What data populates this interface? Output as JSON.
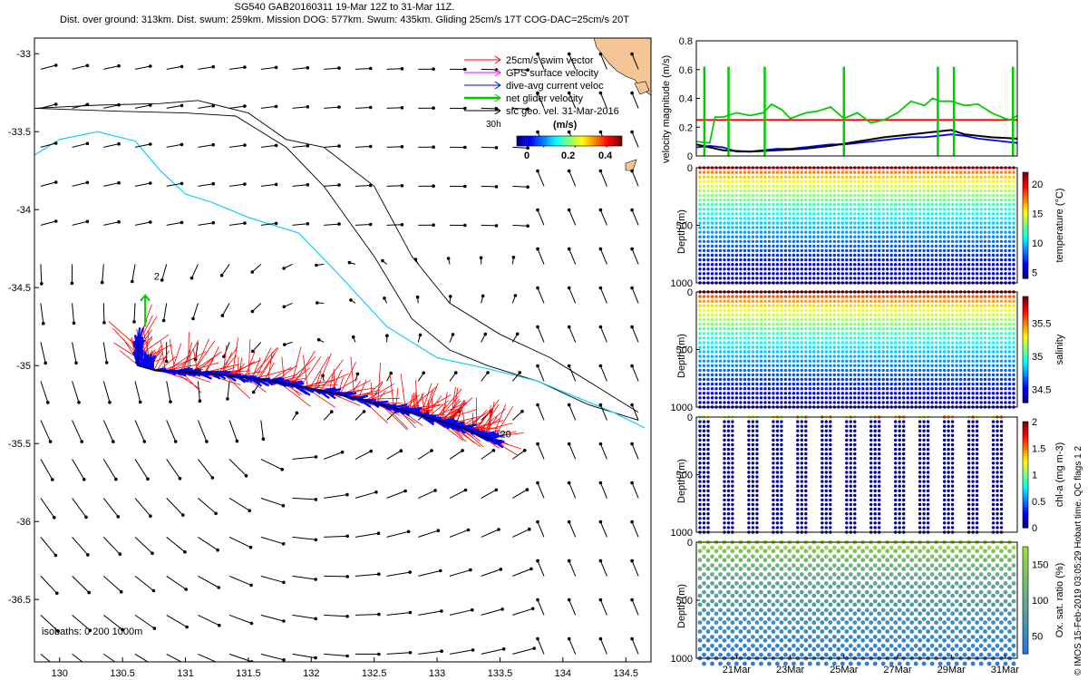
{
  "header": {
    "title": "SG540 GAB20160311 19-Mar 12Z to 31-Mar 11Z.",
    "subtitle": "Dist. over ground: 313km. Dist. swum: 259km. Mission DOG: 577km. Swum: 435km. Gliding 25cm/s 17T COG-DAC=25cm/s 20T"
  },
  "credit": "© IMOS 15-Feb-2019 03:05:29 Hobart time. QC flags 1 2",
  "colors": {
    "swim": "#ff0000",
    "gps": "#ff00ff",
    "dac": "#0000ff",
    "net": "#00cc00",
    "geo": "#000000",
    "coast200": "#00ccff",
    "isobath": "#000000",
    "land": "#f5c596"
  },
  "chart_data": [
    {
      "type": "map",
      "xlim": [
        129.8,
        134.7
      ],
      "ylim": [
        -36.9,
        -32.9
      ],
      "xticks": [
        "130",
        "130.5",
        "131",
        "131.5",
        "132",
        "132.5",
        "133",
        "133.5",
        "134",
        "134.5"
      ],
      "xtick_values": [
        130,
        130.5,
        131,
        131.5,
        132,
        132.5,
        133,
        133.5,
        134,
        134.5
      ],
      "yticks": [
        "-33",
        "-33.5",
        "-34",
        "-34.5",
        "-35",
        "-35.5",
        "-36",
        "-36.5"
      ],
      "ytick_values": [
        -33,
        -33.5,
        -34,
        -34.5,
        -35,
        -35.5,
        -36,
        -36.5
      ],
      "legend": [
        {
          "label": "25cm/s swim vector",
          "color": "#ff0000"
        },
        {
          "label": "GPS surface velocity",
          "color": "#ff00ff"
        },
        {
          "label": "dive-avg current veloc",
          "color": "#0000ff"
        },
        {
          "label": "net glider velocity",
          "color": "#00cc00"
        },
        {
          "label": "sfc geo. vel. 31-Mar-2016",
          "color": "#000000"
        }
      ],
      "legend_note": "30h",
      "colorbar": {
        "label": "(m/s)",
        "ticks": [
          "0",
          "0.2",
          "0.4"
        ]
      },
      "isobaths_label": "isobaths: 0   200  1000m",
      "track_labels": [
        "2",
        "20"
      ],
      "glider_track": [
        [
          130.62,
          -34.85
        ],
        [
          130.62,
          -35.0
        ],
        [
          130.75,
          -35.03
        ],
        [
          131.2,
          -35.05
        ],
        [
          131.7,
          -35.1
        ],
        [
          132.2,
          -35.18
        ],
        [
          132.7,
          -35.28
        ],
        [
          133.0,
          -35.35
        ],
        [
          133.2,
          -35.4
        ],
        [
          133.45,
          -35.48
        ]
      ],
      "isobath_1000": [
        [
          129.8,
          -33.35
        ],
        [
          130.3,
          -33.33
        ],
        [
          130.8,
          -33.32
        ],
        [
          131.1,
          -33.3
        ],
        [
          131.5,
          -33.38
        ],
        [
          131.8,
          -33.55
        ],
        [
          132.1,
          -33.6
        ],
        [
          132.5,
          -33.85
        ],
        [
          132.8,
          -34.3
        ],
        [
          133.1,
          -34.6
        ],
        [
          133.5,
          -34.8
        ],
        [
          133.9,
          -34.95
        ],
        [
          134.2,
          -35.1
        ],
        [
          134.4,
          -35.2
        ],
        [
          134.6,
          -35.3
        ]
      ],
      "isobath_300": [
        [
          129.8,
          -33.35
        ],
        [
          130.5,
          -33.37
        ],
        [
          131.0,
          -33.38
        ],
        [
          131.4,
          -33.4
        ],
        [
          131.8,
          -33.6
        ],
        [
          132.1,
          -33.85
        ],
        [
          132.5,
          -34.3
        ],
        [
          132.8,
          -34.7
        ],
        [
          133.1,
          -34.9
        ],
        [
          133.4,
          -35.0
        ],
        [
          133.8,
          -35.1
        ],
        [
          134.2,
          -35.25
        ],
        [
          134.6,
          -35.35
        ]
      ],
      "isobath_200": [
        [
          129.8,
          -33.65
        ],
        [
          130.0,
          -33.55
        ],
        [
          130.3,
          -33.5
        ],
        [
          130.6,
          -33.56
        ],
        [
          130.8,
          -33.75
        ],
        [
          131.0,
          -33.9
        ],
        [
          131.2,
          -33.95
        ],
        [
          131.5,
          -34.05
        ],
        [
          131.9,
          -34.15
        ],
        [
          132.2,
          -34.4
        ],
        [
          132.6,
          -34.75
        ],
        [
          133.0,
          -34.95
        ],
        [
          133.4,
          -35.02
        ],
        [
          133.8,
          -35.1
        ],
        [
          134.1,
          -35.2
        ],
        [
          134.4,
          -35.3
        ],
        [
          134.65,
          -35.4
        ]
      ],
      "velocity_field": "sfc geo. vel. 31-Mar-2016"
    },
    {
      "type": "line",
      "ylabel": "velocity magnitude (m/s)",
      "ylim": [
        0,
        0.8
      ],
      "yticks": [
        "0",
        "0.2",
        "0.4",
        "0.6",
        "0.8"
      ],
      "x_range_days": [
        19.5,
        31.46
      ],
      "series": [
        {
          "color": "#ff0000",
          "x": [
            19.5,
            31.46
          ],
          "values": [
            0.25,
            0.25
          ]
        },
        {
          "color": "#00cc00",
          "x": [
            19.5,
            20.0,
            20.2,
            20.5,
            21.0,
            21.5,
            22.0,
            22.3,
            22.7,
            23.0,
            23.3,
            23.6,
            24.0,
            24.5,
            25.0,
            25.5,
            26.0,
            26.5,
            27.0,
            27.5,
            28.0,
            28.3,
            28.6,
            29.0,
            29.5,
            30.0,
            30.5,
            31.0,
            31.2,
            31.46
          ],
          "values": [
            0.1,
            0.09,
            0.27,
            0.27,
            0.3,
            0.28,
            0.3,
            0.36,
            0.32,
            0.26,
            0.28,
            0.3,
            0.31,
            0.34,
            0.26,
            0.3,
            0.23,
            0.25,
            0.3,
            0.38,
            0.35,
            0.4,
            0.38,
            0.38,
            0.35,
            0.36,
            0.3,
            0.26,
            0.25,
            0.28
          ]
        },
        {
          "color": "#0000ff",
          "x": [
            19.5,
            20.0,
            20.5,
            21.0,
            21.5,
            22.0,
            22.5,
            23.0,
            23.5,
            24.0,
            24.5,
            25.0,
            25.5,
            26.0,
            26.5,
            27.0,
            27.5,
            28.0,
            28.5,
            29.0,
            29.5,
            30.0,
            30.5,
            31.0,
            31.46
          ],
          "values": [
            0.06,
            0.07,
            0.06,
            0.03,
            0.03,
            0.04,
            0.05,
            0.05,
            0.06,
            0.07,
            0.08,
            0.08,
            0.09,
            0.1,
            0.11,
            0.12,
            0.13,
            0.13,
            0.14,
            0.15,
            0.14,
            0.12,
            0.11,
            0.1,
            0.09
          ]
        },
        {
          "color": "#000000",
          "x": [
            19.5,
            20.5,
            21.5,
            22.5,
            23.5,
            24.5,
            25.5,
            26.5,
            27.5,
            28.5,
            29.0,
            29.5,
            30.5,
            31.46
          ],
          "values": [
            0.08,
            0.04,
            0.03,
            0.04,
            0.05,
            0.07,
            0.1,
            0.13,
            0.15,
            0.17,
            0.18,
            0.15,
            0.13,
            0.12
          ]
        }
      ]
    },
    {
      "type": "scatter",
      "variable": "temperature",
      "ylabel": "Depth (m)",
      "yticks": [
        "0",
        "500",
        "1000"
      ],
      "ylim": [
        1000,
        0
      ],
      "colorbar": {
        "label": "temperature (°C)",
        "ticks": [
          "5",
          "10",
          "15",
          "20"
        ],
        "range": [
          4,
          22
        ]
      },
      "profile_interval_hours": 3.9,
      "surface_value": 20,
      "bottom_value": 5,
      "max_depth": 1000
    },
    {
      "type": "scatter",
      "variable": "salinity",
      "ylabel": "Depth (m)",
      "yticks": [
        "0",
        "500",
        "1000"
      ],
      "ylim": [
        1000,
        0
      ],
      "colorbar": {
        "label": "salinity",
        "ticks": [
          "34.5",
          "35",
          "35.5"
        ],
        "range": [
          34.3,
          35.9
        ]
      },
      "profile_interval_hours": 3.9,
      "surface_value": 35.8,
      "bottom_value": 34.4,
      "max_depth": 1000
    },
    {
      "type": "scatter",
      "variable": "chl-a",
      "ylabel": "Depth (m)",
      "yticks": [
        "0",
        "500",
        "1000"
      ],
      "ylim": [
        1000,
        0
      ],
      "colorbar": {
        "label": "chl-a (mg m-3)",
        "ticks": [
          "0",
          "0.5",
          "1",
          "1.5",
          "2"
        ],
        "range": [
          0,
          2
        ]
      },
      "surface_value": 1.0,
      "bottom_value": 0,
      "max_depth": 1000
    },
    {
      "type": "scatter",
      "variable": "oxygen saturation",
      "ylabel": "Depth (m)",
      "yticks": [
        "0",
        "500",
        "1000"
      ],
      "ylim": [
        1000,
        0
      ],
      "colorbar": {
        "label": "Ox. sat. ratio (%)",
        "ticks": [
          "50",
          "100",
          "150"
        ],
        "range": [
          25,
          175
        ]
      },
      "xticks": [
        "21Mar",
        "23Mar",
        "25Mar",
        "27Mar",
        "29Mar",
        "31Mar"
      ],
      "xtick_values": [
        21,
        23,
        25,
        27,
        29,
        31
      ],
      "surface_value": 165,
      "bottom_value": 35,
      "max_depth": 1000
    }
  ]
}
